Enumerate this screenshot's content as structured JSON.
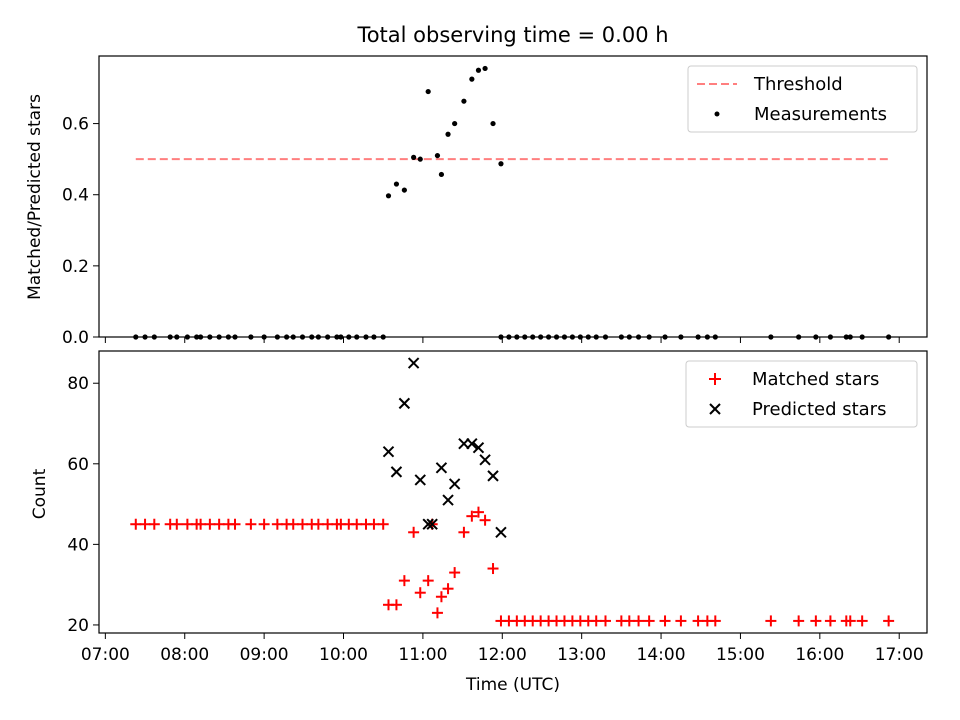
{
  "title": "Total observing time = 0.00 h",
  "chart_data": [
    {
      "type": "scatter",
      "ylabel": "Matched/Predicted stars",
      "ylim": [
        0,
        0.79
      ],
      "yticks": [
        "0.0",
        "0.2",
        "0.4",
        "0.6"
      ],
      "xlim_hours": [
        6.92,
        17.35
      ],
      "legend_position": "upper right",
      "threshold": {
        "name": "Threshold",
        "y": 0.5,
        "x": [
          "07:23",
          "16:52"
        ],
        "color": "#ff7f7f",
        "style": "dashed"
      },
      "series": [
        {
          "name": "Measurements",
          "color": "#000000",
          "points": [
            [
              "07:23",
              0
            ],
            [
              "07:30",
              0
            ],
            [
              "07:37",
              0
            ],
            [
              "07:49",
              0
            ],
            [
              "07:54",
              0
            ],
            [
              "08:02",
              0
            ],
            [
              "08:09",
              0
            ],
            [
              "08:12",
              0
            ],
            [
              "08:19",
              0
            ],
            [
              "08:26",
              0
            ],
            [
              "08:33",
              0
            ],
            [
              "08:38",
              0
            ],
            [
              "08:50",
              0
            ],
            [
              "09:00",
              0
            ],
            [
              "09:10",
              0
            ],
            [
              "09:17",
              0
            ],
            [
              "09:22",
              0
            ],
            [
              "09:29",
              0
            ],
            [
              "09:36",
              0
            ],
            [
              "09:41",
              0
            ],
            [
              "09:48",
              0
            ],
            [
              "09:55",
              0
            ],
            [
              "09:58",
              0
            ],
            [
              "10:04",
              0
            ],
            [
              "10:10",
              0
            ],
            [
              "10:17",
              0
            ],
            [
              "10:23",
              0
            ],
            [
              "10:30",
              0
            ],
            [
              "10:34",
              0.397
            ],
            [
              "10:40",
              0.43
            ],
            [
              "10:46",
              0.413
            ],
            [
              "10:53",
              0.505
            ],
            [
              "10:58",
              0.5
            ],
            [
              "11:04",
              0.69
            ],
            [
              "11:11",
              0.51
            ],
            [
              "11:14",
              0.457
            ],
            [
              "11:19",
              0.57
            ],
            [
              "11:24",
              0.6
            ],
            [
              "11:31",
              0.663
            ],
            [
              "11:37",
              0.725
            ],
            [
              "11:42",
              0.75
            ],
            [
              "11:47",
              0.755
            ],
            [
              "11:53",
              0.6
            ],
            [
              "11:59",
              0.487
            ],
            [
              "11:59",
              0
            ],
            [
              "12:05",
              0
            ],
            [
              "12:11",
              0
            ],
            [
              "12:17",
              0
            ],
            [
              "12:23",
              0
            ],
            [
              "12:29",
              0
            ],
            [
              "12:35",
              0
            ],
            [
              "12:41",
              0
            ],
            [
              "12:47",
              0
            ],
            [
              "12:53",
              0
            ],
            [
              "12:59",
              0
            ],
            [
              "13:05",
              0
            ],
            [
              "13:11",
              0
            ],
            [
              "13:18",
              0
            ],
            [
              "13:30",
              0
            ],
            [
              "13:36",
              0
            ],
            [
              "13:43",
              0
            ],
            [
              "13:51",
              0
            ],
            [
              "14:03",
              0
            ],
            [
              "14:15",
              0
            ],
            [
              "14:28",
              0
            ],
            [
              "14:35",
              0
            ],
            [
              "14:41",
              0
            ],
            [
              "15:23",
              0
            ],
            [
              "15:44",
              0
            ],
            [
              "15:57",
              0
            ],
            [
              "16:08",
              0
            ],
            [
              "16:20",
              0
            ],
            [
              "16:23",
              0
            ],
            [
              "16:32",
              0
            ],
            [
              "16:52",
              0
            ]
          ]
        }
      ]
    },
    {
      "type": "scatter",
      "xlabel": "Time (UTC)",
      "ylabel": "Count",
      "ylim": [
        18,
        88
      ],
      "yticks": [
        "20",
        "40",
        "60",
        "80"
      ],
      "xticks": [
        "07:00",
        "08:00",
        "09:00",
        "10:00",
        "11:00",
        "12:00",
        "13:00",
        "14:00",
        "15:00",
        "16:00",
        "17:00"
      ],
      "xlim_hours": [
        6.92,
        17.35
      ],
      "legend_position": "upper right",
      "series": [
        {
          "name": "Matched stars",
          "marker": "+",
          "color": "#ff0000",
          "points": [
            [
              "07:23",
              45
            ],
            [
              "07:30",
              45
            ],
            [
              "07:37",
              45
            ],
            [
              "07:49",
              45
            ],
            [
              "07:54",
              45
            ],
            [
              "08:02",
              45
            ],
            [
              "08:09",
              45
            ],
            [
              "08:12",
              45
            ],
            [
              "08:19",
              45
            ],
            [
              "08:26",
              45
            ],
            [
              "08:33",
              45
            ],
            [
              "08:38",
              45
            ],
            [
              "08:50",
              45
            ],
            [
              "09:00",
              45
            ],
            [
              "09:10",
              45
            ],
            [
              "09:17",
              45
            ],
            [
              "09:22",
              45
            ],
            [
              "09:29",
              45
            ],
            [
              "09:36",
              45
            ],
            [
              "09:41",
              45
            ],
            [
              "09:48",
              45
            ],
            [
              "09:55",
              45
            ],
            [
              "09:58",
              45
            ],
            [
              "10:04",
              45
            ],
            [
              "10:10",
              45
            ],
            [
              "10:17",
              45
            ],
            [
              "10:23",
              45
            ],
            [
              "10:30",
              45
            ],
            [
              "10:34",
              25
            ],
            [
              "10:40",
              25
            ],
            [
              "10:46",
              31
            ],
            [
              "10:53",
              43
            ],
            [
              "10:58",
              28
            ],
            [
              "11:04",
              31
            ],
            [
              "11:07",
              45
            ],
            [
              "11:11",
              23
            ],
            [
              "11:14",
              27
            ],
            [
              "11:19",
              29
            ],
            [
              "11:24",
              33
            ],
            [
              "11:31",
              43
            ],
            [
              "11:37",
              47
            ],
            [
              "11:42",
              48
            ],
            [
              "11:47",
              46
            ],
            [
              "11:53",
              34
            ],
            [
              "11:59",
              21
            ],
            [
              "12:05",
              21
            ],
            [
              "12:11",
              21
            ],
            [
              "12:17",
              21
            ],
            [
              "12:23",
              21
            ],
            [
              "12:29",
              21
            ],
            [
              "12:35",
              21
            ],
            [
              "12:41",
              21
            ],
            [
              "12:47",
              21
            ],
            [
              "12:53",
              21
            ],
            [
              "12:59",
              21
            ],
            [
              "13:05",
              21
            ],
            [
              "13:11",
              21
            ],
            [
              "13:18",
              21
            ],
            [
              "13:30",
              21
            ],
            [
              "13:36",
              21
            ],
            [
              "13:43",
              21
            ],
            [
              "13:51",
              21
            ],
            [
              "14:03",
              21
            ],
            [
              "14:15",
              21
            ],
            [
              "14:28",
              21
            ],
            [
              "14:35",
              21
            ],
            [
              "14:41",
              21
            ],
            [
              "15:23",
              21
            ],
            [
              "15:44",
              21
            ],
            [
              "15:57",
              21
            ],
            [
              "16:08",
              21
            ],
            [
              "16:20",
              21
            ],
            [
              "16:23",
              21
            ],
            [
              "16:32",
              21
            ],
            [
              "16:52",
              21
            ]
          ]
        },
        {
          "name": "Predicted stars",
          "marker": "x",
          "color": "#000000",
          "points": [
            [
              "10:34",
              63
            ],
            [
              "10:40",
              58
            ],
            [
              "10:46",
              75
            ],
            [
              "10:53",
              85
            ],
            [
              "10:58",
              56
            ],
            [
              "11:04",
              45
            ],
            [
              "11:07",
              45
            ],
            [
              "11:14",
              59
            ],
            [
              "11:19",
              51
            ],
            [
              "11:24",
              55
            ],
            [
              "11:31",
              65
            ],
            [
              "11:37",
              65
            ],
            [
              "11:42",
              64
            ],
            [
              "11:47",
              61
            ],
            [
              "11:53",
              57
            ],
            [
              "11:59",
              43
            ]
          ]
        }
      ]
    }
  ]
}
